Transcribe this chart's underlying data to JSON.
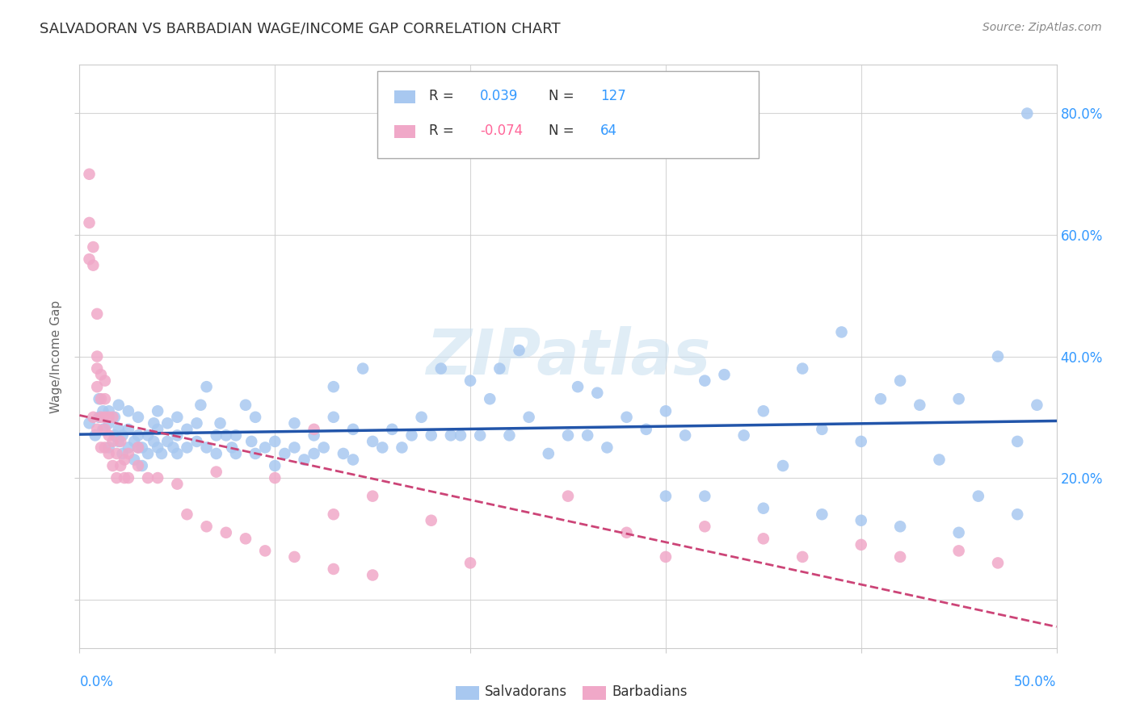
{
  "title": "SALVADORAN VS BARBADIAN WAGE/INCOME GAP CORRELATION CHART",
  "source": "Source: ZipAtlas.com",
  "ylabel": "Wage/Income Gap",
  "x_range": [
    0.0,
    0.5
  ],
  "y_range": [
    -0.08,
    0.88
  ],
  "legend_r_blue": "0.039",
  "legend_n_blue": "127",
  "legend_r_pink": "-0.074",
  "legend_n_pink": "64",
  "blue_color": "#a8c8f0",
  "pink_color": "#f0a8c8",
  "line_blue": "#2255aa",
  "line_pink": "#cc4477",
  "watermark": "ZIPatlas",
  "salvadorans_x": [
    0.005,
    0.008,
    0.01,
    0.01,
    0.012,
    0.012,
    0.015,
    0.015,
    0.015,
    0.018,
    0.018,
    0.02,
    0.02,
    0.02,
    0.022,
    0.022,
    0.025,
    0.025,
    0.025,
    0.028,
    0.028,
    0.03,
    0.03,
    0.03,
    0.032,
    0.032,
    0.035,
    0.035,
    0.038,
    0.038,
    0.04,
    0.04,
    0.04,
    0.042,
    0.045,
    0.045,
    0.048,
    0.05,
    0.05,
    0.05,
    0.055,
    0.055,
    0.06,
    0.06,
    0.062,
    0.065,
    0.065,
    0.07,
    0.07,
    0.072,
    0.075,
    0.078,
    0.08,
    0.08,
    0.085,
    0.088,
    0.09,
    0.09,
    0.095,
    0.1,
    0.1,
    0.105,
    0.11,
    0.11,
    0.115,
    0.12,
    0.12,
    0.125,
    0.13,
    0.13,
    0.135,
    0.14,
    0.14,
    0.145,
    0.15,
    0.155,
    0.16,
    0.165,
    0.17,
    0.175,
    0.18,
    0.185,
    0.19,
    0.195,
    0.2,
    0.205,
    0.21,
    0.215,
    0.22,
    0.225,
    0.23,
    0.24,
    0.25,
    0.255,
    0.26,
    0.265,
    0.27,
    0.28,
    0.29,
    0.3,
    0.31,
    0.32,
    0.33,
    0.34,
    0.35,
    0.36,
    0.37,
    0.38,
    0.39,
    0.4,
    0.41,
    0.42,
    0.43,
    0.44,
    0.45,
    0.46,
    0.47,
    0.48,
    0.485,
    0.49,
    0.3,
    0.35,
    0.4,
    0.45,
    0.48,
    0.32,
    0.38,
    0.42
  ],
  "salvadorans_y": [
    0.29,
    0.27,
    0.3,
    0.33,
    0.28,
    0.31,
    0.29,
    0.31,
    0.25,
    0.27,
    0.3,
    0.26,
    0.28,
    0.32,
    0.24,
    0.27,
    0.25,
    0.28,
    0.31,
    0.23,
    0.26,
    0.25,
    0.27,
    0.3,
    0.22,
    0.25,
    0.24,
    0.27,
    0.26,
    0.29,
    0.25,
    0.28,
    0.31,
    0.24,
    0.26,
    0.29,
    0.25,
    0.24,
    0.27,
    0.3,
    0.25,
    0.28,
    0.26,
    0.29,
    0.32,
    0.25,
    0.35,
    0.24,
    0.27,
    0.29,
    0.27,
    0.25,
    0.24,
    0.27,
    0.32,
    0.26,
    0.24,
    0.3,
    0.25,
    0.22,
    0.26,
    0.24,
    0.25,
    0.29,
    0.23,
    0.27,
    0.24,
    0.25,
    0.3,
    0.35,
    0.24,
    0.28,
    0.23,
    0.38,
    0.26,
    0.25,
    0.28,
    0.25,
    0.27,
    0.3,
    0.27,
    0.38,
    0.27,
    0.27,
    0.36,
    0.27,
    0.33,
    0.38,
    0.27,
    0.41,
    0.3,
    0.24,
    0.27,
    0.35,
    0.27,
    0.34,
    0.25,
    0.3,
    0.28,
    0.31,
    0.27,
    0.36,
    0.37,
    0.27,
    0.31,
    0.22,
    0.38,
    0.28,
    0.44,
    0.26,
    0.33,
    0.36,
    0.32,
    0.23,
    0.33,
    0.17,
    0.4,
    0.26,
    0.8,
    0.32,
    0.17,
    0.15,
    0.13,
    0.11,
    0.14,
    0.17,
    0.14,
    0.12
  ],
  "barbadians_x": [
    0.005,
    0.005,
    0.005,
    0.007,
    0.007,
    0.007,
    0.009,
    0.009,
    0.009,
    0.009,
    0.009,
    0.011,
    0.011,
    0.011,
    0.011,
    0.013,
    0.013,
    0.013,
    0.013,
    0.013,
    0.015,
    0.015,
    0.015,
    0.017,
    0.017,
    0.017,
    0.019,
    0.019,
    0.021,
    0.021,
    0.023,
    0.023,
    0.025,
    0.025,
    0.03,
    0.03,
    0.035,
    0.04,
    0.05,
    0.07,
    0.1,
    0.12,
    0.13,
    0.15,
    0.18,
    0.2,
    0.25,
    0.28,
    0.3,
    0.32,
    0.35,
    0.37,
    0.4,
    0.42,
    0.45,
    0.47,
    0.055,
    0.065,
    0.075,
    0.085,
    0.095,
    0.11,
    0.13,
    0.15
  ],
  "barbadians_y": [
    0.56,
    0.62,
    0.7,
    0.3,
    0.55,
    0.58,
    0.28,
    0.35,
    0.38,
    0.4,
    0.47,
    0.25,
    0.3,
    0.33,
    0.37,
    0.25,
    0.28,
    0.3,
    0.33,
    0.36,
    0.24,
    0.27,
    0.3,
    0.22,
    0.26,
    0.3,
    0.2,
    0.24,
    0.22,
    0.26,
    0.2,
    0.23,
    0.2,
    0.24,
    0.22,
    0.25,
    0.2,
    0.2,
    0.19,
    0.21,
    0.2,
    0.28,
    0.14,
    0.17,
    0.13,
    0.06,
    0.17,
    0.11,
    0.07,
    0.12,
    0.1,
    0.07,
    0.09,
    0.07,
    0.08,
    0.06,
    0.14,
    0.12,
    0.11,
    0.1,
    0.08,
    0.07,
    0.05,
    0.04
  ]
}
